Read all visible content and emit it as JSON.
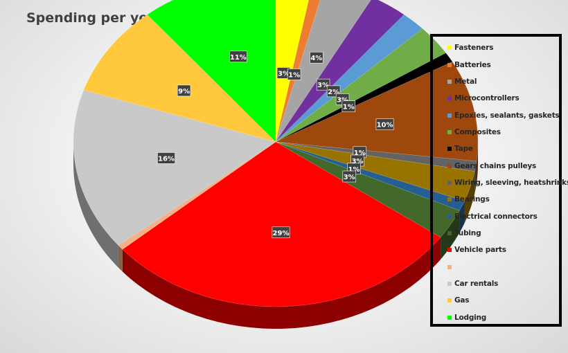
{
  "chart_data": {
    "type": "pie",
    "title": "Spending per year",
    "legend_position": "right",
    "slices": [
      {
        "label": "Fasteners",
        "value": 3,
        "color": "#FFFF00",
        "display": "3%"
      },
      {
        "label": "Batteries",
        "value": 1,
        "color": "#ED7D31",
        "display": "1%"
      },
      {
        "label": "Metal",
        "value": 4,
        "color": "#A5A5A5",
        "display": "4%"
      },
      {
        "label": "Microcontrollers",
        "value": 3,
        "color": "#7030A0",
        "display": "3%"
      },
      {
        "label": "Epoxies, sealants, gaskets",
        "value": 2,
        "color": "#5B9BD5",
        "display": "2%"
      },
      {
        "label": "Composites",
        "value": 3,
        "color": "#70AD47",
        "display": "3%"
      },
      {
        "label": "Tape",
        "value": 1,
        "color": "#000000",
        "display": "1%"
      },
      {
        "label": "Gears chains pulleys",
        "value": 10,
        "color": "#9E480E",
        "display": "10%"
      },
      {
        "label": "Wiring, sleeving, heatshrinks",
        "value": 1,
        "color": "#636363",
        "display": "1%"
      },
      {
        "label": "Bearings",
        "value": 3,
        "color": "#997300",
        "display": "3%"
      },
      {
        "label": "Electrical connectors",
        "value": 1,
        "color": "#255E91",
        "display": "1%"
      },
      {
        "label": "Tubing",
        "value": 3,
        "color": "#43682B",
        "display": "3%"
      },
      {
        "label": "Vehicle parts",
        "value": 29,
        "color": "#FF0000",
        "display": "29%"
      },
      {
        "label": "",
        "value": 0.5,
        "color": "#F4B183",
        "display": ""
      },
      {
        "label": "Car rentals",
        "value": 16,
        "color": "#C9C9C9",
        "display": "16%"
      },
      {
        "label": "Gas",
        "value": 9,
        "color": "#FFC83D",
        "display": "9%"
      },
      {
        "label": "Lodging",
        "value": 11,
        "color": "#00FF00",
        "display": "11%"
      }
    ]
  }
}
